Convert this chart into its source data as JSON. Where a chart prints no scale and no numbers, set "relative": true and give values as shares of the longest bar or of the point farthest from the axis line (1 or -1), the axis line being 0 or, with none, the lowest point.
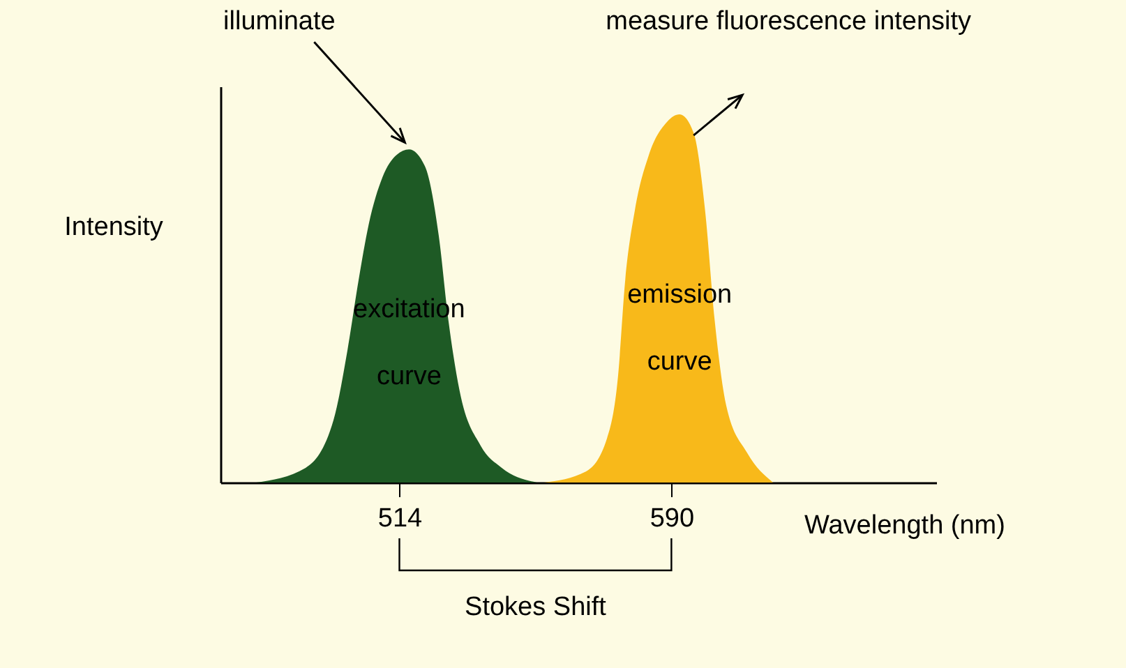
{
  "chart_data": {
    "type": "area",
    "relative": true,
    "xlabel": "Wavelength (nm)",
    "ylabel": "Intensity",
    "xlim": [
      464,
      664
    ],
    "xticks": [
      514,
      590
    ],
    "annotations": [
      {
        "text": "illuminate",
        "x": 516.7,
        "y": 0.905
      },
      {
        "text": "measure fluorescence intensity",
        "x": 592.3,
        "y": 1
      },
      "Stokes Shift"
    ],
    "series": [
      {
        "name": "excitation curve",
        "color": "#1e5a25",
        "x": [
          474.0,
          487.8,
          495.6,
          499.5,
          502.6,
          505.4,
          509.3,
          513.2,
          516.7,
          521.1,
          525.0,
          527.7,
          530.8,
          536.7,
          542.6,
          552.4
        ],
        "values": [
          0,
          0.04,
          0.17,
          0.36,
          0.55,
          0.7,
          0.83,
          0.89,
          0.905,
          0.86,
          0.67,
          0.44,
          0.25,
          0.1,
          0.04,
          0
        ]
      },
      {
        "name": "emission curve",
        "color": "#f8b91a",
        "x": [
          554.4,
          566.1,
          572.0,
          575.1,
          577.1,
          579.8,
          583.7,
          588.8,
          592.3,
          596.2,
          599.4,
          602.1,
          605.3,
          611.2,
          618.4
        ],
        "values": [
          0,
          0.03,
          0.12,
          0.29,
          0.55,
          0.74,
          0.89,
          0.98,
          1,
          0.95,
          0.74,
          0.44,
          0.21,
          0.08,
          0
        ]
      }
    ]
  }
}
